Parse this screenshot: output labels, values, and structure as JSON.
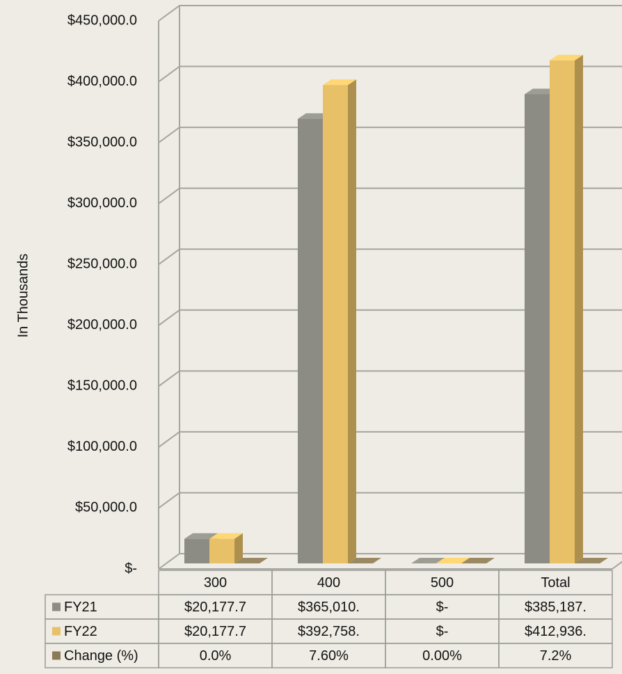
{
  "chart_data": {
    "type": "bar3d",
    "y_axis_label": "In Thousands",
    "categories": [
      "300",
      "400",
      "500",
      "Total"
    ],
    "series": [
      {
        "name": "FY21",
        "color": "#8c8c84",
        "values": [
          20177.7,
          365010,
          0,
          385187
        ],
        "value_labels": [
          "$20,177.7",
          "$365,010.",
          "$-",
          "$385,187."
        ]
      },
      {
        "name": "FY22",
        "color": "#e8c068",
        "values": [
          20177.7,
          392758,
          0,
          412936
        ],
        "value_labels": [
          "$20,177.7",
          "$392,758.",
          "$-",
          "$412,936."
        ]
      },
      {
        "name": "Change (%)",
        "color": "#8a7a58",
        "values": [
          0.0,
          7.6,
          0.0,
          7.2
        ],
        "value_labels": [
          "0.0%",
          "7.60%",
          "0.00%",
          "7.2%"
        ]
      }
    ],
    "ylim": [
      0,
      450000
    ],
    "yticks": [
      {
        "value": 0,
        "label": "$-"
      },
      {
        "value": 50000,
        "label": "$50,000.0"
      },
      {
        "value": 100000,
        "label": "$100,000.0"
      },
      {
        "value": 150000,
        "label": "$150,000.0"
      },
      {
        "value": 200000,
        "label": "$200,000.0"
      },
      {
        "value": 250000,
        "label": "$250,000.0"
      },
      {
        "value": 300000,
        "label": "$300,000.0"
      },
      {
        "value": 350000,
        "label": "$350,000.0"
      },
      {
        "value": 400000,
        "label": "$400,000.0"
      },
      {
        "value": 450000,
        "label": "$450,000.0"
      }
    ],
    "grid": true
  }
}
